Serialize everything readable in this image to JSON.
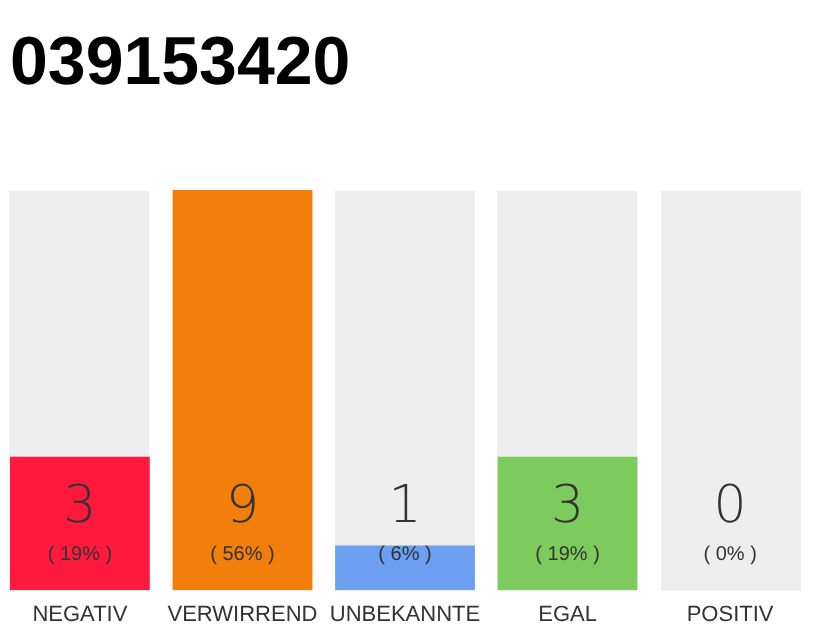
{
  "chart_data": {
    "type": "bar",
    "title": "039153420",
    "categories": [
      "NEGATIV",
      "VERWIRREND",
      "UNBEKANNTE",
      "EGAL",
      "POSITIV"
    ],
    "values": [
      3,
      9,
      1,
      3,
      0
    ],
    "colors": [
      "#ff1a3d",
      "#f27f0c",
      "#6c9ef2",
      "#7dcb5c",
      "#cccccc"
    ],
    "tick_labels": "x",
    "data_labels": true,
    "grid": "x",
    "annotations": [
      "( 19% )",
      "( 56% )",
      "( 6% )",
      "( 19% )",
      "( 0% )"
    ]
  }
}
